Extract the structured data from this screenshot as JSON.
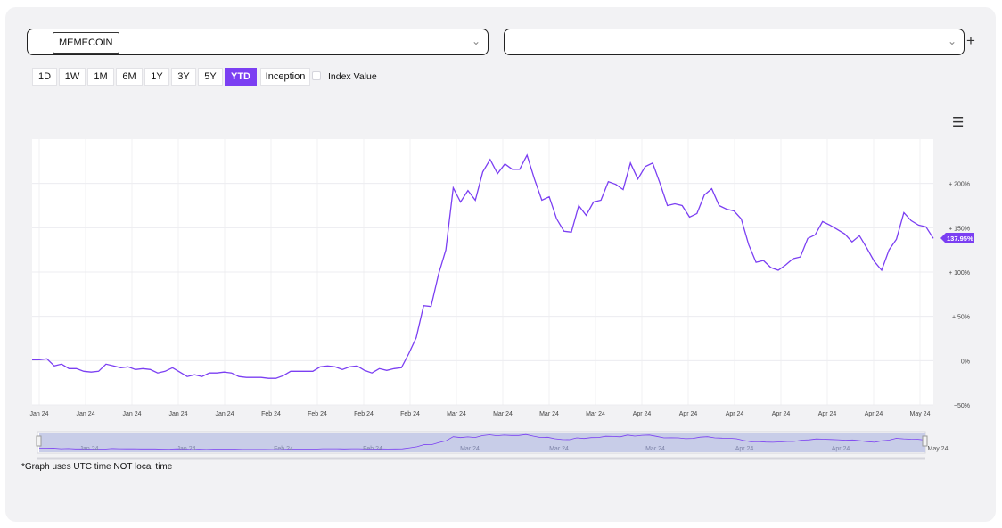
{
  "selector1": {
    "tag": "MEMECOIN",
    "chevron": "chevron-down-icon"
  },
  "selector2": {
    "value": "",
    "chevron": "chevron-down-icon"
  },
  "add_icon": "plus-icon",
  "ranges": [
    "1D",
    "1W",
    "1M",
    "6M",
    "1Y",
    "3Y",
    "5Y",
    "YTD",
    "Inception"
  ],
  "active_range": "YTD",
  "index_value_label": "Index Value",
  "menu_icon": "hamburger-menu-icon",
  "footnote": "*Graph uses UTC time NOT local time",
  "colors": {
    "line": "#7b3ff2",
    "badge": "#7b3ff2",
    "navigator": "#c8cde8"
  },
  "chart_data": {
    "type": "line",
    "title": "",
    "xlabel": "",
    "ylabel": "",
    "ylim": [
      -50,
      250
    ],
    "yticks": [
      -50,
      0,
      50,
      100,
      150,
      200
    ],
    "ytick_labels": [
      "−50%",
      "0%",
      "+ 50%",
      "+ 100%",
      "+ 150%",
      "+ 200%"
    ],
    "xtick_labels": [
      "Jan 24",
      "Jan 24",
      "Jan 24",
      "Jan 24",
      "Jan 24",
      "Feb 24",
      "Feb 24",
      "Feb 24",
      "Feb 24",
      "Mar 24",
      "Mar 24",
      "Mar 24",
      "Mar 24",
      "Apr 24",
      "Apr 24",
      "Apr 24",
      "Apr 24",
      "Apr 24",
      "Apr 24",
      "May 24"
    ],
    "last_value_label": "137.95%",
    "grid": true,
    "series": [
      {
        "values": [
          1,
          1,
          2,
          -6,
          -4,
          -9,
          -9,
          -12,
          -13,
          -12,
          -4,
          -6,
          -8,
          -7,
          -10,
          -9,
          -10,
          -14,
          -12,
          -8,
          -13,
          -18,
          -16,
          -18,
          -14,
          -14,
          -13,
          -14,
          -18,
          -19,
          -19,
          -19,
          -20,
          -20,
          -17,
          -12,
          -12,
          -12,
          -12,
          -7,
          -6,
          -7,
          -10,
          -7,
          -6,
          -11,
          -14,
          -9,
          -11,
          -9,
          -8,
          8,
          26,
          62,
          61,
          97,
          125,
          195,
          179,
          192,
          181,
          213,
          227,
          211,
          222,
          216,
          216,
          232,
          205,
          181,
          185,
          160,
          146,
          145,
          175,
          164,
          179,
          181,
          202,
          199,
          193,
          223,
          205,
          219,
          223,
          200,
          175,
          177,
          175,
          162,
          166,
          187,
          194,
          175,
          171,
          169,
          160,
          131,
          111,
          113,
          105,
          102,
          108,
          115,
          117,
          138,
          142,
          157,
          153,
          148,
          143,
          134,
          141,
          127,
          112,
          102,
          125,
          137,
          167,
          158,
          153,
          151,
          138
        ]
      }
    ],
    "navigator_labels": [
      "Jan 24",
      "Jan 24",
      "Feb 24",
      "Feb 24",
      "Mar 24",
      "Mar 24",
      "Mar 24",
      "Apr 24",
      "Apr 24",
      "May 24"
    ]
  }
}
